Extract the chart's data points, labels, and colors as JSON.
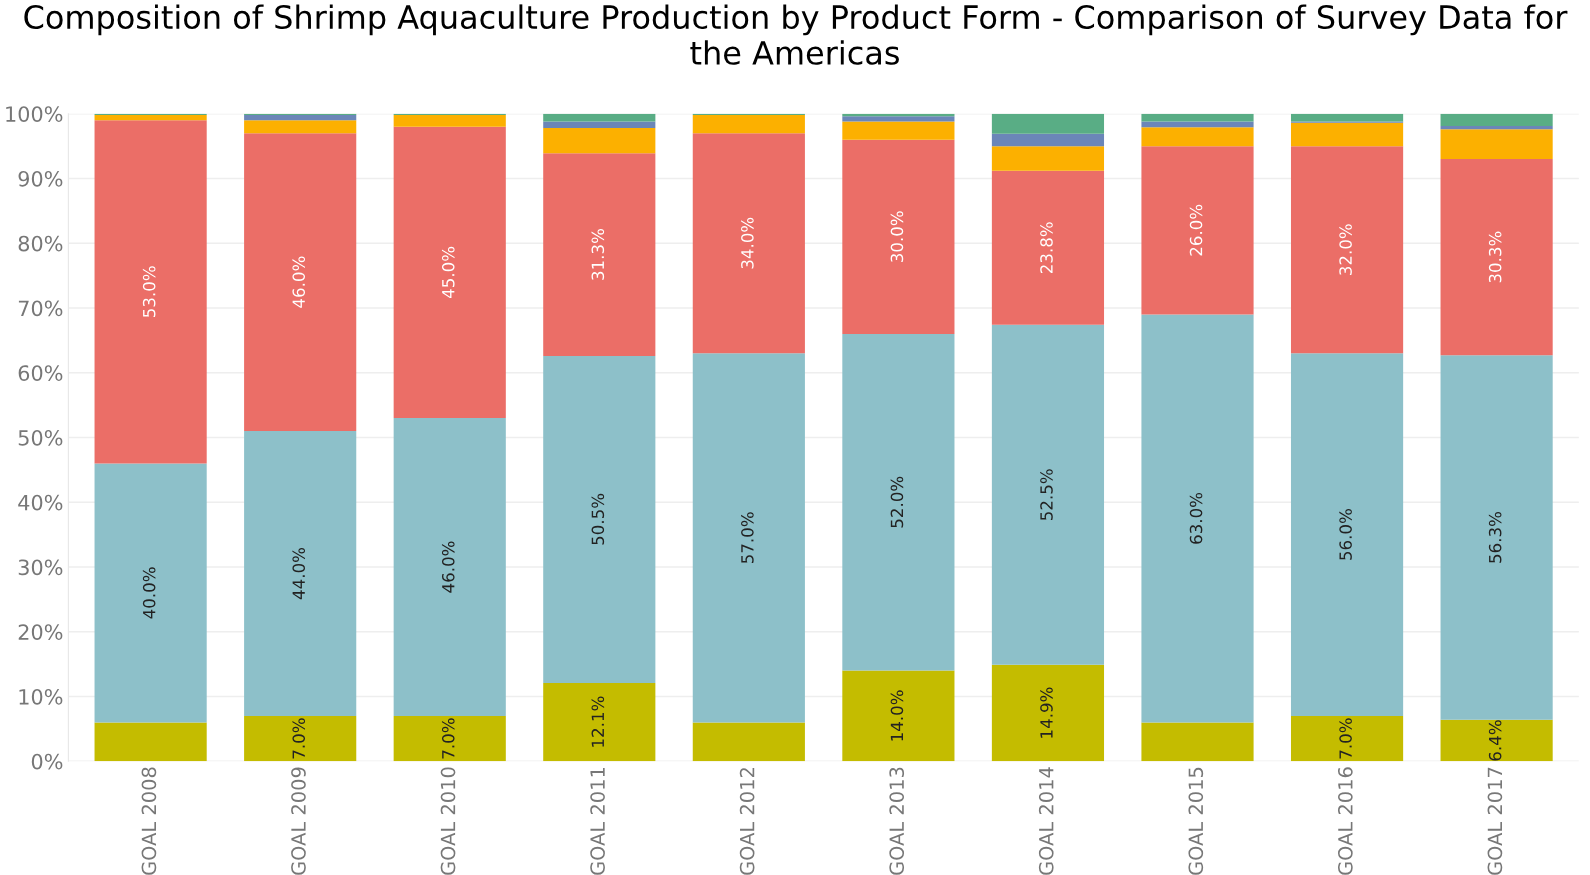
{
  "chart_data": {
    "type": "bar",
    "title": "Composition of Shrimp Aquaculture Production by Product Form - Comparison of Survey Data for the Americas",
    "categories": [
      "GOAL 2008",
      "GOAL 2009",
      "GOAL 2010",
      "GOAL 2011",
      "GOAL 2012",
      "GOAL 2013",
      "GOAL 2014",
      "GOAL 2015",
      "GOAL 2016",
      "GOAL 2017"
    ],
    "stacked": true,
    "series": [
      {
        "color": "#c4bc00",
        "values": [
          6.0,
          7.0,
          7.0,
          12.1,
          6.0,
          14.0,
          14.9,
          6.0,
          7.0,
          6.4
        ],
        "value_labels": [
          null,
          "7.0%",
          "7.0%",
          "12.1%",
          null,
          "14.0%",
          "14.9%",
          null,
          "7.0%",
          "6.4%"
        ]
      },
      {
        "color": "#8dc0c9",
        "values": [
          40.0,
          44.0,
          46.0,
          50.5,
          57.0,
          52.0,
          52.5,
          63.0,
          56.0,
          56.3
        ],
        "value_labels": [
          "40.0%",
          "44.0%",
          "46.0%",
          "50.5%",
          "57.0%",
          "52.0%",
          "52.5%",
          "63.0%",
          "56.0%",
          "56.3%"
        ]
      },
      {
        "color": "#eb6e67",
        "values": [
          53.0,
          46.0,
          45.0,
          31.3,
          34.0,
          30.0,
          23.8,
          26.0,
          32.0,
          30.3
        ],
        "value_labels": [
          "53.0%",
          "46.0%",
          "45.0%",
          "31.3%",
          "34.0%",
          "30.0%",
          "23.8%",
          "26.0%",
          "32.0%",
          "30.3%"
        ]
      },
      {
        "color": "#fcb000",
        "values": [
          0.8,
          2.0,
          1.8,
          3.9,
          2.8,
          2.8,
          3.8,
          2.9,
          3.6,
          4.6
        ]
      },
      {
        "color": "#6b86b8",
        "values": [
          0.0,
          0.8,
          0.0,
          1.0,
          0.0,
          0.8,
          1.9,
          0.9,
          0.2,
          0.5
        ]
      },
      {
        "color": "#59ad85",
        "values": [
          0.2,
          0.2,
          0.2,
          1.2,
          0.2,
          0.4,
          3.1,
          1.2,
          1.2,
          1.9
        ]
      }
    ],
    "ylim": [
      0,
      100
    ],
    "yticks": [
      {
        "value": 0,
        "label": "0%"
      },
      {
        "value": 10,
        "label": "10%"
      },
      {
        "value": 20,
        "label": "20%"
      },
      {
        "value": 30,
        "label": "30%"
      },
      {
        "value": 40,
        "label": "40%"
      },
      {
        "value": 50,
        "label": "50%"
      },
      {
        "value": 60,
        "label": "60%"
      },
      {
        "value": 70,
        "label": "70%"
      },
      {
        "value": 80,
        "label": "80%"
      },
      {
        "value": 90,
        "label": "90%"
      },
      {
        "value": 100,
        "label": "100%"
      }
    ],
    "grid": "y"
  }
}
